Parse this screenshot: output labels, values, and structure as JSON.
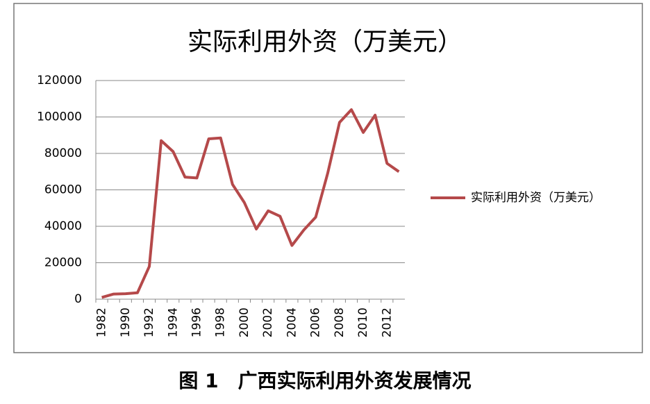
{
  "chart_data": {
    "type": "line",
    "title": "实际利用外资（万美元）",
    "categories": [
      "1982",
      null,
      "1990",
      null,
      "1992",
      null,
      "1994",
      null,
      "1996",
      null,
      "1998",
      null,
      "2000",
      null,
      "2002",
      null,
      "2004",
      null,
      "2006",
      null,
      "2008",
      null,
      "2010",
      null,
      "2012",
      null
    ],
    "series": [
      {
        "name": "实际利用外资（万美元）",
        "color": "#b5494a",
        "values": [
          1000,
          2800,
          3000,
          3500,
          18000,
          87000,
          81000,
          67000,
          66500,
          88000,
          88500,
          63000,
          53000,
          38500,
          48500,
          45500,
          29500,
          38000,
          45000,
          69000,
          97000,
          104000,
          91500,
          101000,
          74500,
          70000
        ]
      }
    ],
    "ylim": [
      0,
      120000
    ],
    "yticks": [
      0,
      20000,
      40000,
      60000,
      80000,
      100000,
      120000
    ],
    "grid": true,
    "legend": "right"
  },
  "caption": "图 1　广西实际利用外资发展情况"
}
